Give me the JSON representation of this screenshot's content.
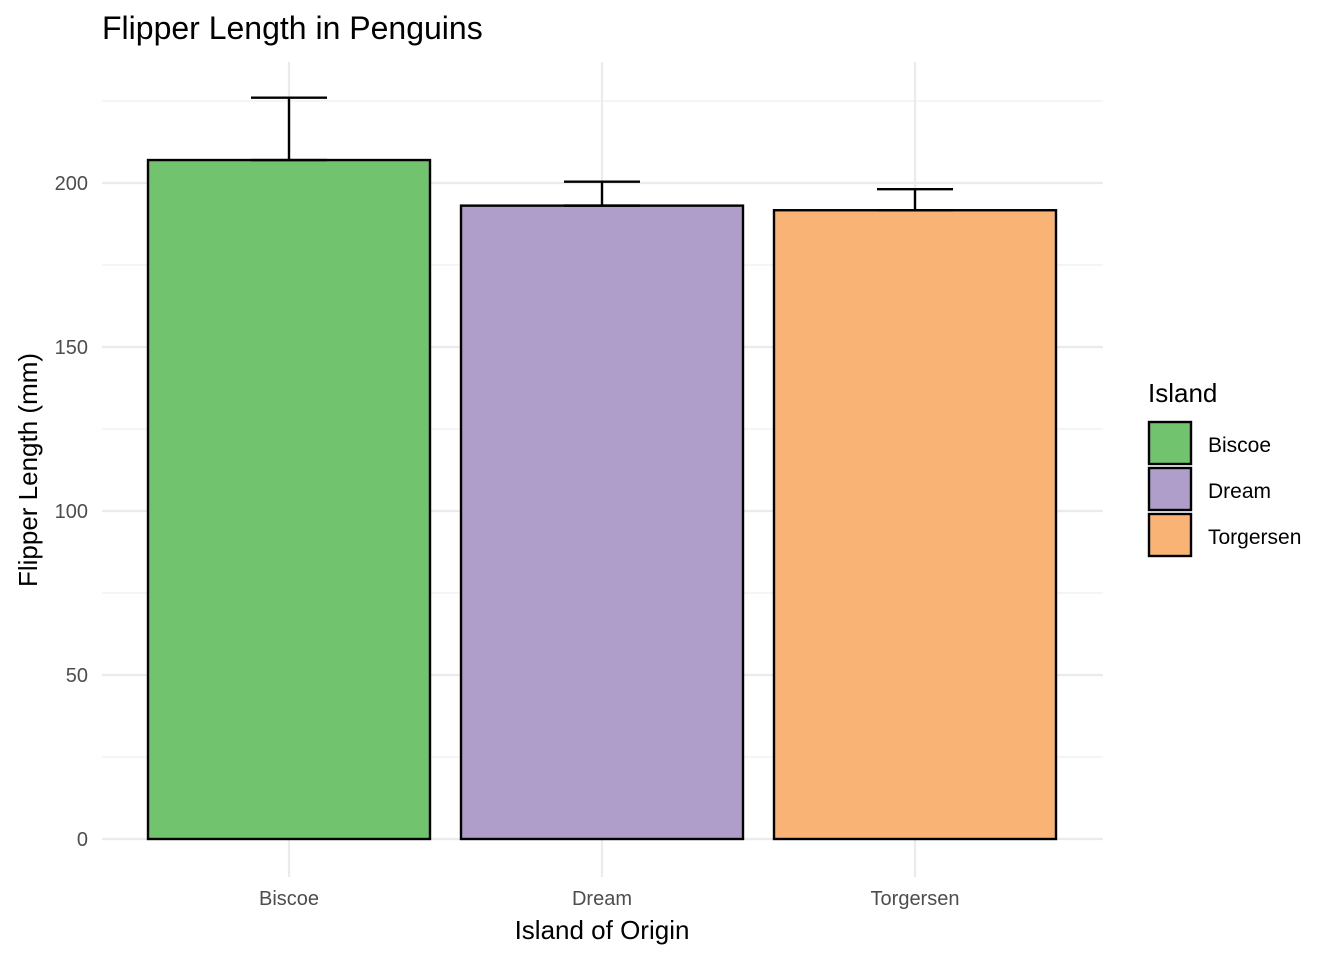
{
  "chart_data": {
    "type": "bar",
    "title": "Flipper Length in Penguins",
    "xlabel": "Island of Origin",
    "ylabel": "Flipper Length (mm)",
    "categories": [
      "Biscoe",
      "Dream",
      "Torgersen"
    ],
    "values": [
      207,
      193.1,
      191.7
    ],
    "error_upper": [
      226,
      200.4,
      198.1
    ],
    "colors": [
      "#71c36d",
      "#af9dca",
      "#f9b375"
    ],
    "ylim": [
      0,
      230
    ],
    "yticks": [
      0,
      50,
      100,
      150,
      200
    ],
    "grid": true,
    "legend": {
      "title": "Island",
      "placement": "right",
      "entries": [
        "Biscoe",
        "Dream",
        "Torgersen"
      ]
    }
  }
}
